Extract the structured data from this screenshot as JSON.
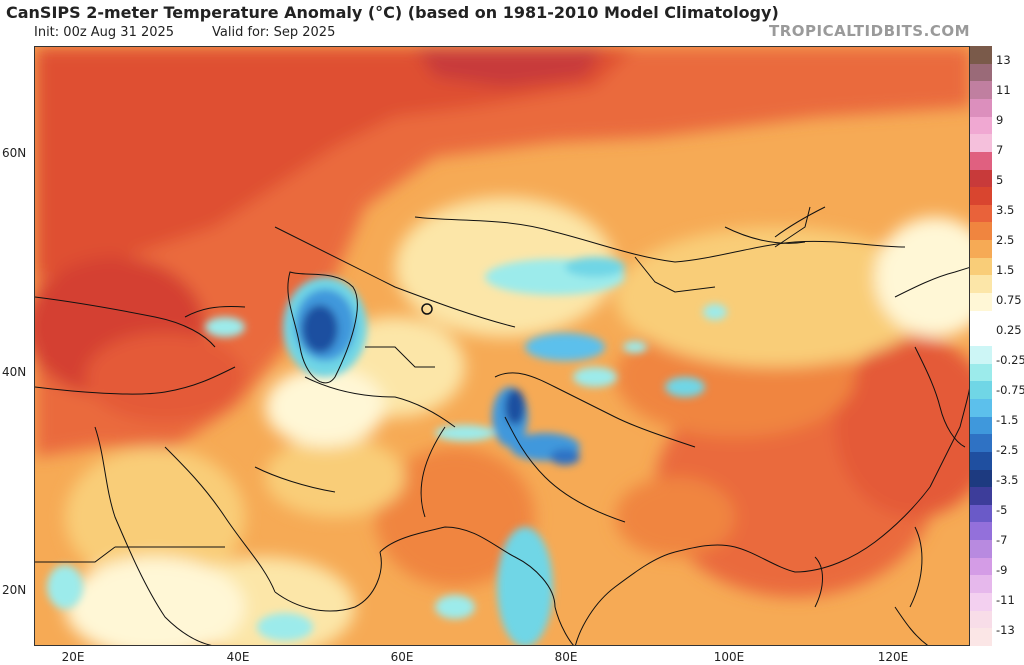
{
  "header": {
    "title": "CanSIPS 2-meter Temperature Anomaly (°C) (based on 1981-2010 Model Climatology)",
    "init": "Init: 00z Aug 31 2025",
    "valid": "Valid for: Sep 2025",
    "brand": "TROPICALTIDBITS.COM"
  },
  "axes": {
    "lat_labels": [
      "60N",
      "40N",
      "20N"
    ],
    "lon_labels": [
      "20E",
      "40E",
      "60E",
      "80E",
      "100E",
      "120E"
    ]
  },
  "colorbar": {
    "labels": [
      "13",
      "11",
      "9",
      "7",
      "5",
      "3.5",
      "2.5",
      "1.5",
      "0.75",
      "0.25",
      "-0.25",
      "-0.75",
      "-1.5",
      "-2.5",
      "-3.5",
      "-5",
      "-7",
      "-9",
      "-11",
      "-13"
    ],
    "colors": [
      "#7a5a4a",
      "#9a6a78",
      "#c07fa0",
      "#dc8fbd",
      "#f0a8d2",
      "#f5c0dc",
      "#e06080",
      "#c83a3a",
      "#d9452f",
      "#e9623a",
      "#f0853f",
      "#f6aa55",
      "#f9cd78",
      "#fce6a8",
      "#fff7d6",
      "#ffffff",
      "#ffffff",
      "#cdf6f6",
      "#9cebeb",
      "#70d6e6",
      "#5cc0ec",
      "#3f98dc",
      "#2f72c4",
      "#1f4fa0",
      "#1d3a80",
      "#3d3d9a",
      "#6a5ac8",
      "#9370db",
      "#b88ae0",
      "#d49ce6",
      "#e6b8ec",
      "#f3d0f0",
      "#f8dde8",
      "#fbe6e6"
    ]
  }
}
